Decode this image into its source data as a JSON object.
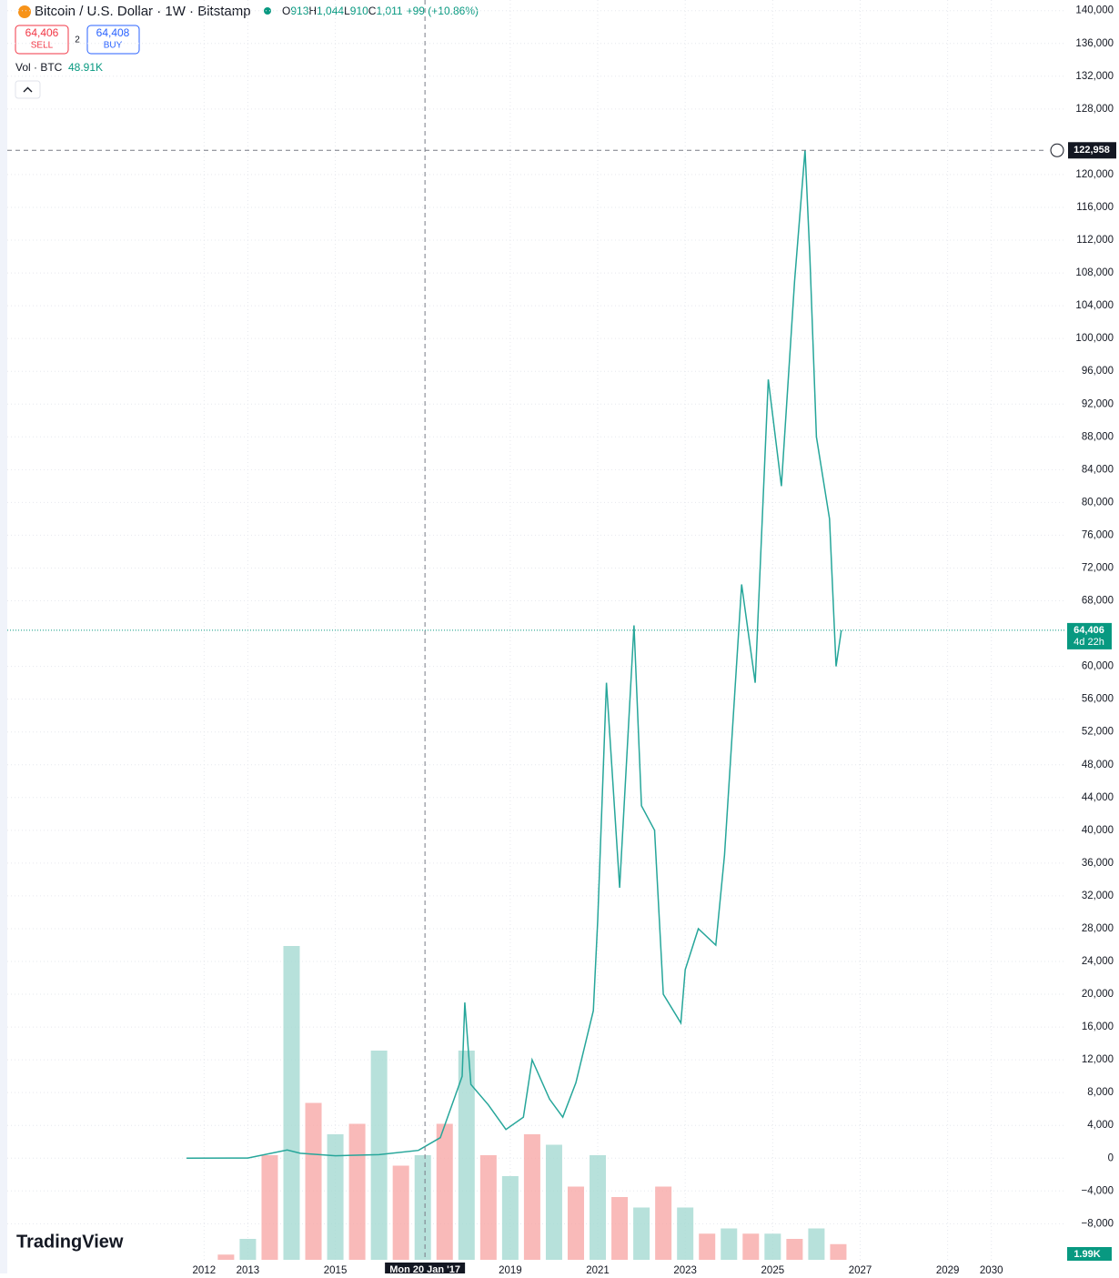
{
  "header": {
    "title": "Bitcoin / U.S. Dollar · 1W · Bitstamp",
    "ohlc": [
      "O",
      "913",
      "H",
      "1,044",
      "L",
      "910",
      "C",
      "1,011",
      "+99 (+10.86%)"
    ],
    "sell_price": "64,406",
    "sell_label": "SELL",
    "spread": "2",
    "buy_price": "64,408",
    "buy_label": "BUY",
    "volume_label": "Vol · BTC",
    "volume_value": "48.91K",
    "logo": "TradingView"
  },
  "chart_data": {
    "type": "line",
    "color": "#26a69a",
    "grid": true,
    "x": [
      2011.6,
      2013.0,
      2013.9,
      2014.2,
      2015.0,
      2016.0,
      2016.9,
      2017.4,
      2017.9,
      2017.96,
      2018.1,
      2018.5,
      2018.9,
      2019.3,
      2019.5,
      2019.9,
      2020.2,
      2020.5,
      2020.9,
      2021.0,
      2021.2,
      2021.5,
      2021.83,
      2022.0,
      2022.3,
      2022.5,
      2022.9,
      2023.0,
      2023.3,
      2023.7,
      2023.9,
      2024.29,
      2024.6,
      2024.9,
      2025.2,
      2025.5,
      2025.74,
      2025.85,
      2026.0,
      2026.3,
      2026.45,
      2026.57
    ],
    "values": [
      0,
      13,
      1000,
      600,
      300,
      430,
      950,
      2500,
      10000,
      19000,
      9000,
      6500,
      3500,
      5000,
      12000,
      7200,
      5000,
      9200,
      18000,
      29000,
      58000,
      33000,
      65000,
      43000,
      40000,
      20000,
      16500,
      23000,
      28000,
      26000,
      37000,
      70000,
      58000,
      95000,
      82000,
      107000,
      123000,
      110000,
      88000,
      78000,
      60000,
      64406
    ],
    "xlim": [
      2007.5,
      2031.67
    ],
    "xticks": [
      2012,
      2013,
      2015,
      2019,
      2021,
      2023,
      2025,
      2027,
      2029,
      2030
    ],
    "ylim": [
      -12400,
      141300
    ],
    "yticks": [
      {
        "value": -8000,
        "label": "−8,000"
      },
      {
        "value": -4000,
        "label": "−4,000"
      },
      0,
      {
        "value": 4000,
        "label": "4,000"
      },
      {
        "value": 8000,
        "label": "8,000"
      },
      {
        "value": 12000,
        "label": "12,000"
      },
      {
        "value": 16000,
        "label": "16,000"
      },
      {
        "value": 20000,
        "label": "20,000"
      },
      {
        "value": 24000,
        "label": "24,000"
      },
      {
        "value": 28000,
        "label": "28,000"
      },
      {
        "value": 32000,
        "label": "32,000"
      },
      {
        "value": 36000,
        "label": "36,000"
      },
      {
        "value": 40000,
        "label": "40,000"
      },
      {
        "value": 44000,
        "label": "44,000"
      },
      {
        "value": 48000,
        "label": "48,000"
      },
      {
        "value": 52000,
        "label": "52,000"
      },
      {
        "value": 56000,
        "label": "56,000"
      },
      {
        "value": 60000,
        "label": "60,000"
      },
      {
        "value": 68000,
        "label": "68,000"
      },
      {
        "value": 72000,
        "label": "72,000"
      },
      {
        "value": 76000,
        "label": "76,000"
      },
      {
        "value": 80000,
        "label": "80,000"
      },
      {
        "value": 84000,
        "label": "84,000"
      },
      {
        "value": 88000,
        "label": "88,000"
      },
      {
        "value": 92000,
        "label": "92,000"
      },
      {
        "value": 96000,
        "label": "96,000"
      },
      {
        "value": 100000,
        "label": "100,000"
      },
      {
        "value": 104000,
        "label": "104,000"
      },
      {
        "value": 108000,
        "label": "108,000"
      },
      {
        "value": 112000,
        "label": "112,000"
      },
      {
        "value": 116000,
        "label": "116,000"
      },
      {
        "value": 120000,
        "label": "120,000"
      },
      {
        "value": 128000,
        "label": "128,000"
      },
      {
        "value": 132000,
        "label": "132,000"
      },
      {
        "value": 136000,
        "label": "136,000"
      },
      {
        "value": 140000,
        "label": "140,000"
      }
    ],
    "last_price": {
      "value": 64406,
      "label": "64,406"
    },
    "countdown": "4d 22h",
    "last_color": "#089981",
    "crosshair": {
      "price": {
        "value": 122958,
        "label": "122,958"
      },
      "date": {
        "value": 2017.05,
        "label": "Mon 20 Jan '17"
      }
    },
    "volume": {
      "x": [
        2012.5,
        2013,
        2013.5,
        2014,
        2014.5,
        2015,
        2015.5,
        2016,
        2016.5,
        2017,
        2017.5,
        2018,
        2018.5,
        2019,
        2019.5,
        2020,
        2020.5,
        2021,
        2021.5,
        2022,
        2022.5,
        2023,
        2023.5,
        2024,
        2024.5,
        2025,
        2025.5,
        2026,
        2026.5
      ],
      "values": [
        5,
        20,
        100,
        300,
        150,
        120,
        130,
        200,
        90,
        100,
        130,
        200,
        100,
        80,
        120,
        110,
        70,
        100,
        60,
        50,
        70,
        50,
        25,
        30,
        25,
        25,
        20,
        30,
        15
      ],
      "colors": [
        "#f7a9a7",
        "#a5d9d2"
      ],
      "last_label": "1.99K"
    }
  }
}
